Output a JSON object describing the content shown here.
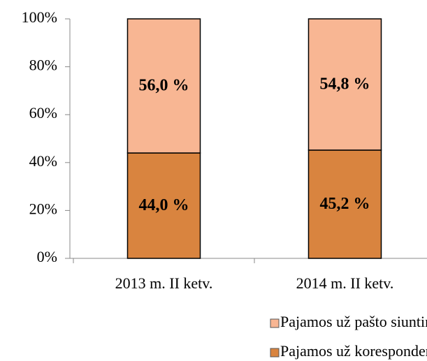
{
  "chart_data": {
    "type": "stacked_bar",
    "categories": [
      "2013 m. II ketv.",
      "2014 m. II ketv."
    ],
    "series": [
      {
        "name": "Pajamos už korespondencijos siuntas",
        "color": "#d9843f",
        "values": [
          44.0,
          45.2
        ],
        "value_labels": [
          "44,0 %",
          "45,2 %"
        ]
      },
      {
        "name": "Pajamos už pašto siuntinius",
        "color": "#f8b693",
        "values": [
          56.0,
          54.8
        ],
        "value_labels": [
          "56,0 %",
          "54,8 %"
        ]
      }
    ],
    "ylim": [
      0,
      100
    ],
    "yticks": [
      {
        "value": 0,
        "label": "0%"
      },
      {
        "value": 20,
        "label": "20%"
      },
      {
        "value": 40,
        "label": "40%"
      },
      {
        "value": 60,
        "label": "60%"
      },
      {
        "value": 80,
        "label": "80%"
      },
      {
        "value": 100,
        "label": "100%"
      }
    ],
    "legend": "bottom"
  }
}
